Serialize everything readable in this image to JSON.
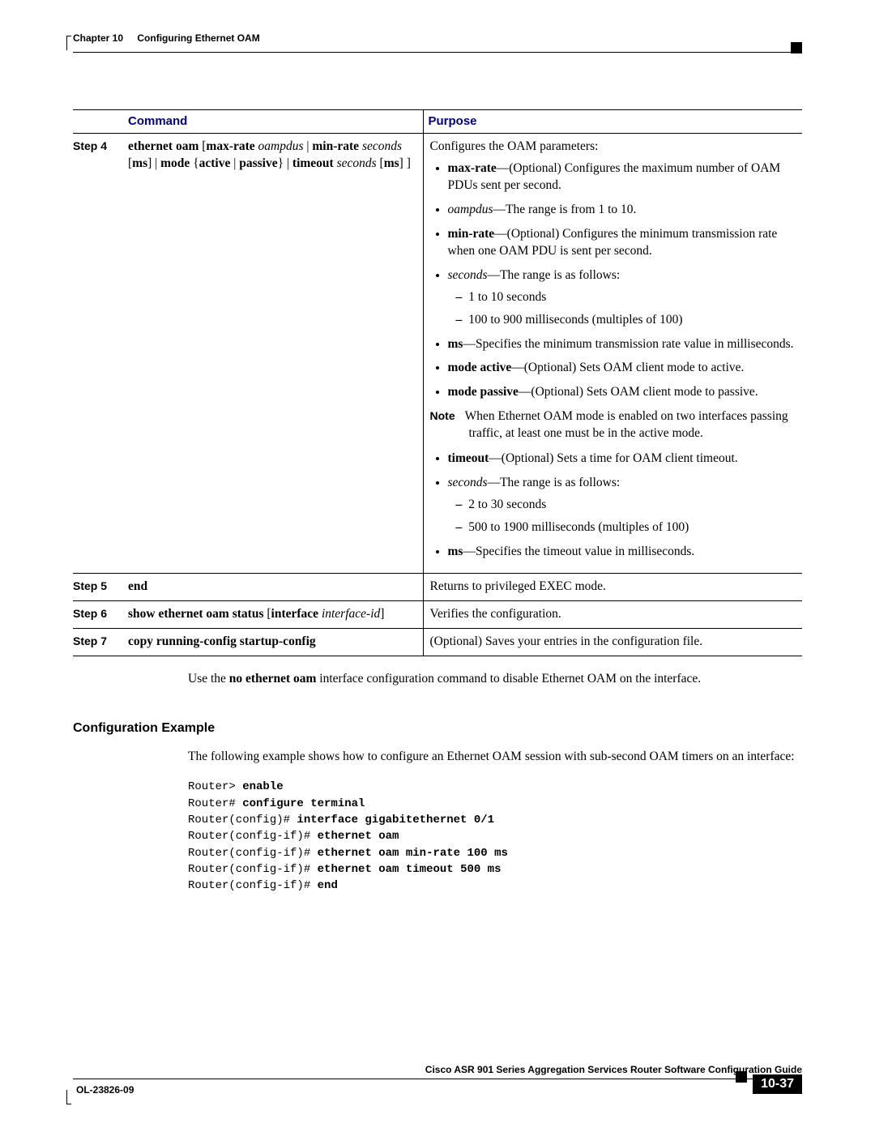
{
  "header": {
    "chapter_label": "Chapter 10",
    "chapter_title": "Configuring Ethernet OAM"
  },
  "table": {
    "headers": {
      "command": "Command",
      "purpose": "Purpose"
    },
    "rows": [
      {
        "step": "Step 4",
        "cmd_parts": {
          "p1": "ethernet oam",
          "p2": " [",
          "p3": "max-rate",
          "p4": " ",
          "p5": "oampdus",
          "p6": " | ",
          "p7": "min-rate",
          "p8": " ",
          "p9": "seconds",
          "p10": " [",
          "p11": "ms",
          "p12": "] | ",
          "p13": "mode",
          "p14": " {",
          "p15": "active",
          "p16": " | ",
          "p17": "passive",
          "p18": "} | ",
          "p19": "timeout",
          "p20": " ",
          "p21": "seconds",
          "p22": " [",
          "p23": "ms",
          "p24": "] ]"
        },
        "purpose": {
          "intro": "Configures the OAM parameters:",
          "b1a": "max-rate",
          "b1b": "—(Optional) Configures the maximum number of OAM PDUs sent per second.",
          "b2a": "oampdus",
          "b2b": "—The range is from 1 to 10.",
          "b3a": "min-rate",
          "b3b": "—(Optional) Configures the minimum transmission rate when one OAM PDU is sent per second.",
          "b4a": "seconds",
          "b4b": "—The range is as follows:",
          "b4s1": "1 to 10 seconds",
          "b4s2": "100 to 900 milliseconds (multiples of 100)",
          "b5a": "ms",
          "b5b": "—Specifies the minimum transmission rate value in milliseconds.",
          "b6a": "mode active",
          "b6b": "—(Optional) Sets OAM client mode to active.",
          "b7a": "mode passive",
          "b7b": "—(Optional) Sets OAM client mode to passive.",
          "note_label": "Note",
          "note_text": "When Ethernet OAM mode is enabled on two interfaces passing traffic, at least one must be in the active mode.",
          "b8a": "timeout",
          "b8b": "—(Optional) Sets a time for OAM client timeout.",
          "b9a": "seconds",
          "b9b": "—The range is as follows:",
          "b9s1": "2 to 30 seconds",
          "b9s2": "500 to 1900 milliseconds (multiples of 100)",
          "b10a": "ms",
          "b10b": "—Specifies the timeout value in milliseconds."
        }
      },
      {
        "step": "Step 5",
        "cmd_parts": {
          "p1": "end"
        },
        "purpose_text": "Returns to privileged EXEC mode."
      },
      {
        "step": "Step 6",
        "cmd_parts": {
          "p1": "show ethernet oam status",
          "p2": " [",
          "p3": "interface",
          "p4": " ",
          "p5": "interface-id",
          "p6": "]"
        },
        "purpose_text": "Verifies the configuration."
      },
      {
        "step": "Step 7",
        "cmd_parts": {
          "p1": "copy running-config startup-config"
        },
        "purpose_text": "(Optional) Saves your entries in the configuration file."
      }
    ]
  },
  "body": {
    "para1a": "Use the ",
    "para1b": "no ethernet oam",
    "para1c": " interface configuration command to disable Ethernet OAM on the interface.",
    "section_head": "Configuration Example",
    "para2": "The following example shows how to configure an Ethernet OAM session with sub-second OAM timers on an interface:"
  },
  "code": {
    "l1a": "Router> ",
    "l1b": "enable",
    "l2a": "Router# ",
    "l2b": "configure terminal",
    "l3a": "Router(config)# ",
    "l3b": "interface gigabitethernet 0/1",
    "l4a": "Router(config-if)# ",
    "l4b": "ethernet oam",
    "l5a": "Router(config-if)# ",
    "l5b": "ethernet oam min-rate 100 ms",
    "l6a": "Router(config-if)# ",
    "l6b": "ethernet oam timeout 500 ms",
    "l7a": "Router(config-if)# ",
    "l7b": "end"
  },
  "footer": {
    "book_title": "Cisco ASR 901 Series Aggregation Services Router Software Configuration Guide",
    "doc_number": "OL-23826-09",
    "page_number": "10-37"
  },
  "colors": {
    "heading_blue": "#000080",
    "text": "#000000",
    "background": "#ffffff"
  }
}
